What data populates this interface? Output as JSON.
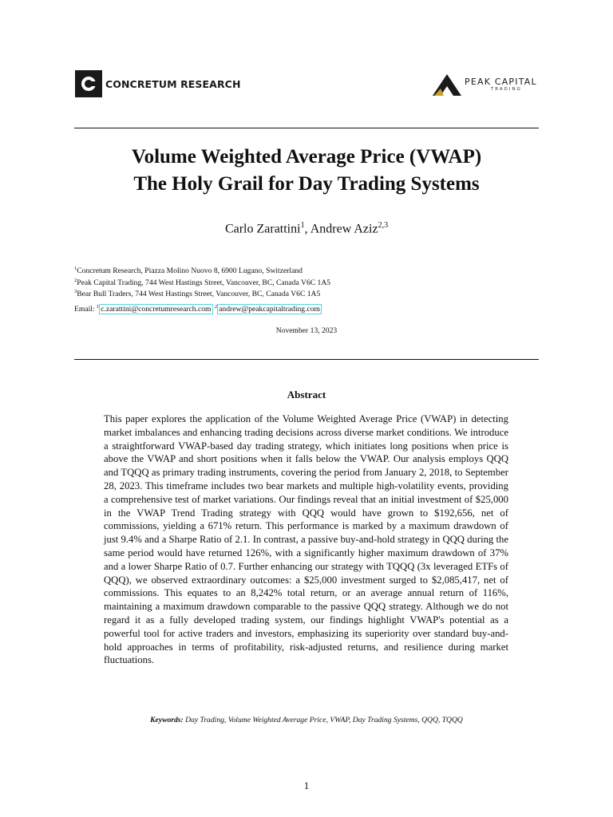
{
  "header": {
    "left_logo_text": "CONCRETUM RESEARCH",
    "right_logo_text": "PEAK CAPITAL",
    "right_logo_subtext": "TRADING",
    "accent_gold": "#c9a227",
    "mark_dark": "#1a1a1a"
  },
  "title": {
    "line1": "Volume Weighted Average Price (VWAP)",
    "line2": "The Holy Grail for Day Trading Systems"
  },
  "authors": {
    "author1": {
      "name": "Carlo Zarattini",
      "sup": "1"
    },
    "separator": ", ",
    "author2": {
      "name": "Andrew Aziz",
      "sup": "2,3"
    }
  },
  "affiliations": [
    {
      "sup": "1",
      "text": "Concretum Research, Piazza Molino Nuovo 8, 6900 Lugano, Switzerland"
    },
    {
      "sup": "2",
      "text": "Peak Capital Trading, 744 West Hastings Street, Vancouver, BC, Canada V6C 1A5"
    },
    {
      "sup": "3",
      "text": "Bear Bull Traders, 744 West Hastings Street, Vancouver, BC, Canada V6C 1A5"
    }
  ],
  "email": {
    "label": "Email:",
    "addresses": [
      {
        "sup": "1",
        "address": "c.zarattini@concretumresearch.com"
      },
      {
        "sup": "2",
        "address": "andrew@peakcapitaltrading.com"
      }
    ],
    "link_border_color": "#4fd6e6"
  },
  "date": "November 13, 2023",
  "abstract": {
    "heading": "Abstract",
    "body": "This paper explores the application of the Volume Weighted Average Price (VWAP) in detecting market imbalances and enhancing trading decisions across diverse market conditions. We introduce a straightforward VWAP-based day trading strategy, which initiates long positions when price is above the VWAP and short positions when it falls below the VWAP. Our analysis employs QQQ and TQQQ as primary trading instruments, covering the period from January 2, 2018, to September 28, 2023. This timeframe includes two bear markets and multiple high-volatility events, providing a comprehensive test of market variations. Our findings reveal that an initial investment of $25,000 in the VWAP Trend Trading strategy with QQQ would have grown to $192,656, net of commissions, yielding a 671% return. This performance is marked by a maximum drawdown of just 9.4% and a Sharpe Ratio of 2.1. In contrast, a passive buy-and-hold strategy in QQQ during the same period would have returned 126%, with a significantly higher maximum drawdown of 37% and a lower Sharpe Ratio of 0.7. Further enhancing our strategy with TQQQ (3x leveraged ETFs of QQQ), we observed extraordinary outcomes: a $25,000 investment surged to $2,085,417, net of commissions. This equates to an 8,242% total return, or an average annual return of 116%, maintaining a maximum drawdown comparable to the passive QQQ strategy. Although we do not regard it as a fully developed trading system, our findings highlight VWAP's potential as a powerful tool for active traders and investors, emphasizing its superiority over standard buy-and-hold approaches in terms of profitability, risk-adjusted returns, and resilience during market fluctuations."
  },
  "keywords": {
    "label": "Keywords:",
    "text": "Day Trading, Volume Weighted Average Price, VWAP, Day Trading Systems, QQQ, TQQQ"
  },
  "page_number": "1"
}
